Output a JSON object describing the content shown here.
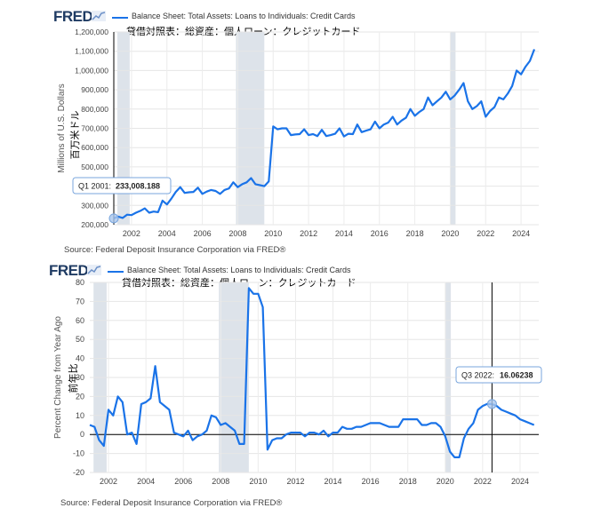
{
  "charts": [
    {
      "logo": "FRED",
      "legend": "Balance Sheet: Total Assets: Loans to Individuals: Credit Cards",
      "jp_title": "貸借対照表：総資産：個人ローン：クレジットカード",
      "ylabel": "Millions of U.S. Dollars",
      "ylabel_jp": "百万米ドル",
      "source": "Source: Federal Deposit Insurance Corporation via FRED®",
      "tooltip": {
        "label": "Q1 2001:",
        "value": "233,008.188"
      }
    },
    {
      "logo": "FRED",
      "legend": "Balance Sheet: Total Assets: Loans to Individuals: Credit Cards",
      "jp_title": "貸借対照表：総資産：個人ローン：クレジットカード",
      "ylabel": "Percent Change from Year Ago",
      "ylabel_jp": "前年比",
      "source": "Source: Federal Deposit Insurance Corporation via FRED®",
      "tooltip": {
        "label": "Q3 2022:",
        "value": "16.06238"
      }
    }
  ],
  "chart_data": [
    {
      "type": "line",
      "series": [
        {
          "name": "Balance Sheet: Total Assets: Loans to Individuals: Credit Cards",
          "color": "#1a73e8"
        }
      ],
      "ylabel": "Millions of U.S. Dollars",
      "ylim": [
        200000,
        1200000
      ],
      "yticks": [
        200000,
        300000,
        400000,
        500000,
        600000,
        700000,
        800000,
        900000,
        1000000,
        1100000,
        1200000
      ],
      "ytick_labels": [
        "200,000",
        "300,000",
        "400,000",
        "500,000",
        "600,000",
        "700,000",
        "800,000",
        "900,000",
        "1,000,000",
        "1,100,000",
        "1,200,000"
      ],
      "xlim": [
        2001.0,
        2025.0
      ],
      "xticks": [
        2002,
        2004,
        2006,
        2008,
        2010,
        2012,
        2014,
        2016,
        2018,
        2020,
        2022,
        2024
      ],
      "recessions": [
        [
          2001.2,
          2001.9
        ],
        [
          2007.9,
          2009.5
        ],
        [
          2020.0,
          2020.3
        ]
      ],
      "grid": true,
      "highlight": {
        "x": 2001.0,
        "y": 233008.188
      },
      "x": [
        2001.0,
        2001.25,
        2001.5,
        2001.75,
        2002.0,
        2002.25,
        2002.5,
        2002.75,
        2003.0,
        2003.25,
        2003.5,
        2003.75,
        2004.0,
        2004.25,
        2004.5,
        2004.75,
        2005.0,
        2005.25,
        2005.5,
        2005.75,
        2006.0,
        2006.25,
        2006.5,
        2006.75,
        2007.0,
        2007.25,
        2007.5,
        2007.75,
        2008.0,
        2008.25,
        2008.5,
        2008.75,
        2009.0,
        2009.25,
        2009.5,
        2009.75,
        2010.0,
        2010.25,
        2010.5,
        2010.75,
        2011.0,
        2011.25,
        2011.5,
        2011.75,
        2012.0,
        2012.25,
        2012.5,
        2012.75,
        2013.0,
        2013.25,
        2013.5,
        2013.75,
        2014.0,
        2014.25,
        2014.5,
        2014.75,
        2015.0,
        2015.25,
        2015.5,
        2015.75,
        2016.0,
        2016.25,
        2016.5,
        2016.75,
        2017.0,
        2017.25,
        2017.5,
        2017.75,
        2018.0,
        2018.25,
        2018.5,
        2018.75,
        2019.0,
        2019.25,
        2019.5,
        2019.75,
        2020.0,
        2020.25,
        2020.5,
        2020.75,
        2021.0,
        2021.25,
        2021.5,
        2021.75,
        2022.0,
        2022.25,
        2022.5,
        2022.75,
        2023.0,
        2023.25,
        2023.5,
        2023.75,
        2024.0,
        2024.25,
        2024.5,
        2024.75
      ],
      "y": [
        233008,
        242000,
        235000,
        252000,
        250000,
        262000,
        272000,
        285000,
        262000,
        268000,
        265000,
        325000,
        305000,
        335000,
        370000,
        395000,
        365000,
        368000,
        370000,
        392000,
        360000,
        372000,
        380000,
        375000,
        360000,
        380000,
        388000,
        420000,
        395000,
        410000,
        420000,
        442000,
        410000,
        405000,
        400000,
        425000,
        710000,
        695000,
        700000,
        700000,
        665000,
        668000,
        670000,
        695000,
        665000,
        670000,
        660000,
        692000,
        660000,
        665000,
        672000,
        700000,
        658000,
        672000,
        670000,
        720000,
        680000,
        688000,
        695000,
        735000,
        700000,
        720000,
        730000,
        760000,
        720000,
        740000,
        755000,
        800000,
        765000,
        785000,
        800000,
        860000,
        820000,
        840000,
        860000,
        890000,
        850000,
        870000,
        900000,
        935000,
        840000,
        800000,
        815000,
        840000,
        760000,
        790000,
        810000,
        860000,
        850000,
        880000,
        920000,
        1000000,
        980000,
        1020000,
        1050000,
        1110000
      ]
    },
    {
      "type": "line",
      "series": [
        {
          "name": "Balance Sheet: Total Assets: Loans to Individuals: Credit Cards",
          "color": "#1a73e8"
        }
      ],
      "ylabel": "Percent Change from Year Ago",
      "ylim": [
        -20,
        80
      ],
      "yticks": [
        -20,
        -10,
        0,
        10,
        20,
        30,
        40,
        50,
        60,
        70,
        80
      ],
      "xlim": [
        2001.0,
        2025.0
      ],
      "xticks": [
        2002,
        2004,
        2006,
        2008,
        2010,
        2012,
        2014,
        2016,
        2018,
        2020,
        2022,
        2024
      ],
      "recessions": [
        [
          2001.2,
          2001.9
        ],
        [
          2007.9,
          2009.5
        ],
        [
          2020.0,
          2020.3
        ]
      ],
      "grid": true,
      "highlight": {
        "x": 2022.5,
        "y": 16.06238
      },
      "x": [
        2001.0,
        2001.25,
        2001.5,
        2001.75,
        2002.0,
        2002.25,
        2002.5,
        2002.75,
        2003.0,
        2003.25,
        2003.5,
        2003.75,
        2004.0,
        2004.25,
        2004.5,
        2004.75,
        2005.0,
        2005.25,
        2005.5,
        2005.75,
        2006.0,
        2006.25,
        2006.5,
        2006.75,
        2007.0,
        2007.25,
        2007.5,
        2007.75,
        2008.0,
        2008.25,
        2008.5,
        2008.75,
        2009.0,
        2009.25,
        2009.5,
        2009.75,
        2010.0,
        2010.25,
        2010.5,
        2010.75,
        2011.0,
        2011.25,
        2011.5,
        2011.75,
        2012.0,
        2012.25,
        2012.5,
        2012.75,
        2013.0,
        2013.25,
        2013.5,
        2013.75,
        2014.0,
        2014.25,
        2014.5,
        2014.75,
        2015.0,
        2015.25,
        2015.5,
        2015.75,
        2016.0,
        2016.25,
        2016.5,
        2016.75,
        2017.0,
        2017.25,
        2017.5,
        2017.75,
        2018.0,
        2018.25,
        2018.5,
        2018.75,
        2019.0,
        2019.25,
        2019.5,
        2019.75,
        2020.0,
        2020.25,
        2020.5,
        2020.75,
        2021.0,
        2021.25,
        2021.5,
        2021.75,
        2022.0,
        2022.25,
        2022.5,
        2022.75,
        2023.0,
        2023.25,
        2023.5,
        2023.75,
        2024.0,
        2024.25,
        2024.5,
        2024.75
      ],
      "y": [
        5,
        4,
        -3,
        -6,
        13,
        10,
        20,
        17,
        0,
        1,
        -5,
        16,
        17,
        19,
        36,
        17,
        15,
        13,
        1,
        0,
        -1,
        2,
        -3,
        -1,
        0,
        2,
        10,
        9,
        5,
        6,
        4,
        2,
        -5,
        -5,
        77,
        74,
        74,
        67,
        -8,
        -3,
        -2,
        -2,
        0,
        1,
        1,
        1,
        -1,
        1,
        1,
        0,
        2,
        -1,
        1,
        1,
        4,
        3,
        3,
        4,
        4,
        5,
        6,
        6,
        6,
        5,
        4,
        4,
        4,
        8,
        8,
        8,
        8,
        5,
        5,
        6,
        6,
        4,
        -1,
        -9,
        -12,
        -12,
        -2,
        3,
        6,
        13,
        15,
        16.06,
        16,
        15,
        13,
        12,
        11,
        10,
        8,
        7,
        6,
        5
      ]
    }
  ]
}
